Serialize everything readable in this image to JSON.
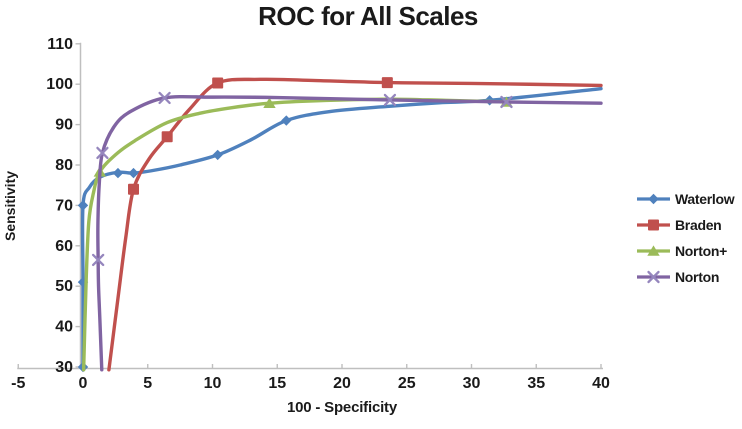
{
  "title": "ROC for All Scales",
  "x_axis_label": "100 - Specificity",
  "y_axis_label": "Sensitivity",
  "axis_color": "#BFBFBF",
  "text_color": "#1A1A1A",
  "chart_data": {
    "type": "line",
    "title": "ROC for All Scales",
    "xlabel": "100 - Specificity",
    "ylabel": "Sensitivity",
    "xlim": [
      -5,
      40
    ],
    "ylim": [
      30,
      110
    ],
    "x_ticks": [
      -5,
      0,
      5,
      10,
      15,
      20,
      25,
      30,
      35,
      40
    ],
    "y_ticks": [
      30,
      40,
      50,
      60,
      70,
      80,
      90,
      100,
      110
    ],
    "grid": false,
    "legend_position": "right",
    "series": [
      {
        "name": "Waterlow",
        "color": "#4F81BD",
        "marker": "diamond",
        "points": [
          [
            0,
            30
          ],
          [
            0,
            51
          ],
          [
            0,
            70
          ],
          [
            2.7,
            78
          ],
          [
            3.9,
            78
          ],
          [
            10.4,
            82.5
          ],
          [
            15.7,
            91
          ],
          [
            31.4,
            96
          ]
        ],
        "path": [
          [
            0,
            30
          ],
          [
            0,
            51
          ],
          [
            0,
            70
          ],
          [
            0.5,
            74.5
          ],
          [
            1.3,
            77
          ],
          [
            2.7,
            78.2
          ],
          [
            3.9,
            78
          ],
          [
            5.5,
            78.7
          ],
          [
            7.5,
            80
          ],
          [
            10.4,
            82.5
          ],
          [
            13,
            86.3
          ],
          [
            15.7,
            91
          ],
          [
            19,
            93.2
          ],
          [
            23.5,
            94.5
          ],
          [
            27.5,
            95.4
          ],
          [
            31.4,
            96
          ],
          [
            40,
            98.9
          ]
        ]
      },
      {
        "name": "Braden",
        "color": "#C0504D",
        "marker": "square",
        "points": [
          [
            3.9,
            74
          ],
          [
            6.5,
            87
          ],
          [
            10.4,
            100.3
          ],
          [
            23.5,
            100.4
          ]
        ],
        "path": [
          [
            2,
            29.3
          ],
          [
            2.7,
            47
          ],
          [
            3.3,
            62
          ],
          [
            3.9,
            74
          ],
          [
            5.1,
            81.5
          ],
          [
            6.5,
            87
          ],
          [
            8.2,
            93.7
          ],
          [
            10.4,
            100.3
          ],
          [
            13.7,
            101.2
          ],
          [
            18,
            100.9
          ],
          [
            23.5,
            100.4
          ],
          [
            30,
            100.2
          ],
          [
            40,
            99.7
          ]
        ]
      },
      {
        "name": "Norton+",
        "color": "#9BBB59",
        "marker": "triangle",
        "points": [
          [
            1.3,
            78.3
          ],
          [
            14.4,
            95.3
          ],
          [
            32.7,
            95.6
          ]
        ],
        "path": [
          [
            0.05,
            29.3
          ],
          [
            0.25,
            52
          ],
          [
            0.45,
            66
          ],
          [
            0.8,
            73
          ],
          [
            1.3,
            78.3
          ],
          [
            2.5,
            82.5
          ],
          [
            4,
            86
          ],
          [
            6.5,
            90.5
          ],
          [
            9,
            92.8
          ],
          [
            11.5,
            94.2
          ],
          [
            14.4,
            95.3
          ],
          [
            18,
            95.9
          ],
          [
            23.5,
            96.3
          ],
          [
            28,
            96.0
          ],
          [
            32.7,
            95.6
          ]
        ]
      },
      {
        "name": "Norton",
        "color": "#8064A2",
        "marker": "x",
        "marker_color": "#9586BD",
        "points": [
          [
            1.17,
            56.5
          ],
          [
            1.5,
            83
          ],
          [
            6.3,
            96.6
          ],
          [
            23.7,
            96.1
          ],
          [
            32.7,
            95.6
          ]
        ],
        "path": [
          [
            1.45,
            29.3
          ],
          [
            1.3,
            42
          ],
          [
            1.2,
            50
          ],
          [
            1.17,
            56.5
          ],
          [
            1.15,
            65
          ],
          [
            1.25,
            75
          ],
          [
            1.5,
            83
          ],
          [
            2.4,
            89.5
          ],
          [
            3.7,
            93.3
          ],
          [
            6.3,
            96.6
          ],
          [
            10,
            96.8
          ],
          [
            15,
            96.7
          ],
          [
            23.7,
            96.1
          ],
          [
            32.7,
            95.6
          ],
          [
            40,
            95.3
          ]
        ]
      }
    ]
  }
}
